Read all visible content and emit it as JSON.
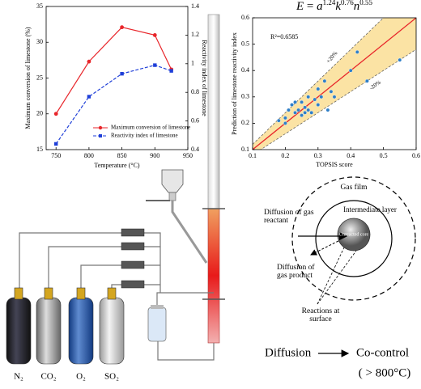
{
  "chart_data": [
    {
      "type": "line",
      "x_label": "Temperature (°C)",
      "y_label": "Maximum conversion of limestone (%)",
      "y2_label": "Reactivity index of limestone",
      "x": [
        750,
        800,
        850,
        900,
        925
      ],
      "xlim": [
        735,
        950
      ],
      "xticks": [
        750,
        800,
        850,
        900,
        950
      ],
      "ylim": [
        15,
        35
      ],
      "yticks": [
        15,
        20,
        25,
        30,
        35
      ],
      "y2lim": [
        0.4,
        1.4
      ],
      "y2ticks": [
        0.4,
        0.6,
        0.8,
        1.0,
        1.2,
        1.4
      ],
      "series": [
        {
          "name": "Maximum conversion of limestone",
          "color": "#e8262b",
          "values": [
            20,
            27.3,
            32.1,
            31,
            26.2
          ]
        },
        {
          "name": "Reactivity index of limestone",
          "color": "#1f3fd8",
          "axis": "y2",
          "values": [
            0.44,
            0.77,
            0.93,
            0.99,
            0.95
          ]
        }
      ]
    },
    {
      "type": "scatter",
      "title_parts": [
        "E",
        " = ",
        "a",
        "1.24",
        "k",
        "0.76",
        "n",
        "0.55"
      ],
      "x_label": "TOPSIS score",
      "y_label": "Prediction of limestone reactivity index",
      "annotation": "R²=0.6585",
      "band_labels": [
        "+20%",
        "-20%"
      ],
      "xlim": [
        0.1,
        0.6
      ],
      "xticks": [
        0.1,
        0.2,
        0.3,
        0.4,
        0.5,
        0.6
      ],
      "ylim": [
        0.1,
        0.6
      ],
      "yticks": [
        0.1,
        0.2,
        0.3,
        0.4,
        0.5,
        0.6
      ],
      "color": "#2f7fc8",
      "x": [
        0.18,
        0.2,
        0.2,
        0.21,
        0.22,
        0.23,
        0.23,
        0.24,
        0.25,
        0.25,
        0.26,
        0.26,
        0.27,
        0.27,
        0.28,
        0.29,
        0.3,
        0.3,
        0.31,
        0.32,
        0.33,
        0.34,
        0.35,
        0.4,
        0.42,
        0.45,
        0.55
      ],
      "values": [
        0.21,
        0.22,
        0.2,
        0.25,
        0.27,
        0.24,
        0.28,
        0.25,
        0.28,
        0.23,
        0.26,
        0.24,
        0.3,
        0.25,
        0.24,
        0.29,
        0.27,
        0.33,
        0.3,
        0.36,
        0.25,
        0.32,
        0.3,
        0.4,
        0.47,
        0.36,
        0.44
      ]
    }
  ],
  "diagram": {
    "gas_film": "Gas film",
    "intermediate": "Intermediate layer",
    "core": "Unreacted core",
    "reactant": "Diffusion of gas reactant",
    "product": "Diffusion of gas product",
    "reactions": "Reactions at surface",
    "flow": [
      "Diffusion",
      "Co-control",
      "( > 800°C)"
    ]
  },
  "gases": [
    "N₂",
    "CO₂",
    "O₂",
    "SO₂"
  ]
}
